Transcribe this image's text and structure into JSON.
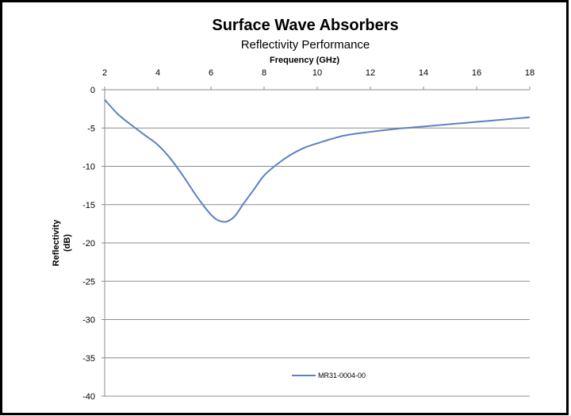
{
  "chart_data": {
    "type": "line",
    "title": "Surface Wave Absorbers",
    "subtitle": "Reflectivity Performance",
    "xlabel": "Frequency (GHz)",
    "ylabel_lines": [
      "Reflectivity",
      "(dB)"
    ],
    "xlim": [
      2,
      18
    ],
    "ylim": [
      -40,
      0
    ],
    "x_ticks": [
      "2",
      "4",
      "6",
      "8",
      "10",
      "12",
      "14",
      "16",
      "18"
    ],
    "y_ticks": [
      "0",
      "-5",
      "-10",
      "-15",
      "-20",
      "-25",
      "-30",
      "-35",
      "-40"
    ],
    "x_axis_position": "top",
    "grid": "horizontal",
    "legend_placement": "bottom-center",
    "series": [
      {
        "name": "MR31-0004-00",
        "color": "#5b82c0",
        "x": [
          2,
          2.5,
          3,
          3.5,
          4,
          4.5,
          5,
          5.5,
          6,
          6.3,
          6.6,
          6.9,
          7.2,
          7.6,
          8,
          8.5,
          9,
          9.5,
          10,
          11,
          12,
          13,
          14,
          15,
          16,
          17,
          18
        ],
        "y": [
          -1.3,
          -3.2,
          -4.6,
          -5.9,
          -7.2,
          -9.1,
          -11.5,
          -14.1,
          -16.3,
          -17.1,
          -17.2,
          -16.5,
          -15.0,
          -13.1,
          -11.2,
          -9.7,
          -8.5,
          -7.6,
          -7.0,
          -6.0,
          -5.5,
          -5.1,
          -4.8,
          -4.5,
          -4.2,
          -3.9,
          -3.6
        ]
      }
    ]
  }
}
